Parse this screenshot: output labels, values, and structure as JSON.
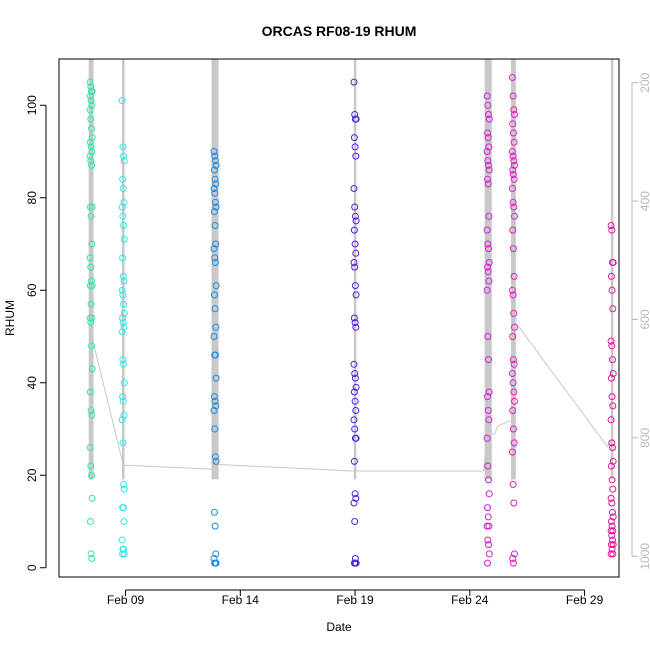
{
  "chart_data": {
    "type": "scatter",
    "title": "ORCAS RF08-19 RHUM",
    "xlabel": "Date",
    "ylabel": "RHUM",
    "x_ticks": [
      "Feb 09",
      "Feb 14",
      "Feb 19",
      "Feb 24",
      "Feb 29"
    ],
    "x_tick_days": [
      9,
      14,
      19,
      24,
      29
    ],
    "xlim_days": [
      6.1,
      30.5
    ],
    "ylim": [
      -2,
      110
    ],
    "y_ticks": [
      0,
      20,
      40,
      60,
      80,
      100
    ],
    "y2_ticks": [
      200,
      400,
      600,
      800,
      1000
    ],
    "y2lim": [
      1035,
      160
    ],
    "grid": false,
    "legend": "none",
    "colors": {
      "altitude_line": "#c8c8c8",
      "axis": "#000000",
      "right_axis": "#b8b8b8"
    },
    "flights": [
      {
        "day": 7.5,
        "color": "#33e6b0",
        "values": [
          105,
          104,
          103,
          103,
          102,
          101,
          100,
          99,
          97,
          95,
          93,
          92,
          91,
          90,
          89,
          88,
          87,
          78,
          78,
          76,
          70,
          67,
          65,
          62,
          61,
          61,
          57,
          54,
          54,
          53,
          48,
          43,
          38,
          34,
          33,
          26,
          22,
          20,
          15,
          10,
          3,
          2
        ]
      },
      {
        "day": 8.9,
        "color": "#2ee8e8",
        "values": [
          101,
          91,
          89,
          88,
          84,
          82,
          79,
          78,
          76,
          74,
          71,
          67,
          63,
          62,
          60,
          59,
          57,
          55,
          54,
          53,
          52,
          51,
          45,
          44,
          40,
          37,
          36,
          33,
          32,
          27,
          18,
          17,
          13,
          13,
          10,
          6,
          4,
          4,
          3,
          3
        ]
      },
      {
        "day": 12.9,
        "color": "#1a8be3",
        "values": [
          90,
          89,
          88,
          87,
          86,
          84,
          83,
          82,
          81,
          79,
          78,
          77,
          74,
          70,
          69,
          67,
          66,
          61,
          59,
          56,
          52,
          50,
          46,
          46,
          41,
          37,
          36,
          35,
          34,
          30,
          24,
          23,
          12,
          9,
          3,
          2,
          1,
          1,
          1
        ]
      },
      {
        "day": 19.0,
        "color": "#4f1ee6",
        "values": [
          105,
          98,
          97,
          97,
          93,
          91,
          89,
          82,
          78,
          76,
          75,
          73,
          70,
          68,
          66,
          65,
          61,
          59,
          54,
          53,
          52,
          44,
          42,
          41,
          39,
          38,
          36,
          34,
          32,
          30,
          28,
          28,
          23,
          16,
          15,
          14,
          10,
          2,
          1,
          1,
          1
        ]
      },
      {
        "day": 24.8,
        "color": "#d21fd6",
        "values": [
          102,
          100,
          98,
          97,
          94,
          93,
          91,
          90,
          88,
          87,
          86,
          84,
          83,
          76,
          73,
          70,
          69,
          66,
          65,
          64,
          62,
          60,
          50,
          45,
          38,
          37,
          34,
          32,
          28,
          22,
          19,
          16,
          13,
          11,
          9,
          9,
          6,
          5,
          3,
          1
        ]
      },
      {
        "day": 25.9,
        "color": "#e61cc4",
        "values": [
          106,
          102,
          99,
          98,
          96,
          94,
          92,
          90,
          89,
          88,
          87,
          86,
          85,
          84,
          82,
          79,
          78,
          76,
          73,
          69,
          63,
          60,
          59,
          55,
          52,
          50,
          45,
          44,
          42,
          40,
          38,
          36,
          34,
          30,
          27,
          25,
          18,
          14,
          3,
          2,
          1
        ]
      },
      {
        "day": 30.2,
        "color": "#e6169b",
        "values": [
          74,
          73,
          66,
          66,
          63,
          60,
          56,
          49,
          48,
          45,
          42,
          41,
          37,
          35,
          32,
          27,
          26,
          23,
          22,
          19,
          17,
          15,
          14,
          12,
          11,
          10,
          9,
          8,
          8,
          7,
          6,
          5,
          5,
          4,
          3,
          3
        ]
      }
    ],
    "altitude_track": [
      {
        "day": 7.4,
        "y2": 820
      },
      {
        "day": 7.45,
        "y2": 800
      },
      {
        "day": 7.5,
        "y2": 700
      },
      {
        "day": 7.55,
        "y2": 610
      },
      {
        "day": 7.6,
        "y2": 640
      },
      {
        "day": 8.9,
        "y2": 846
      },
      {
        "day": 12.8,
        "y2": 853
      },
      {
        "day": 13.0,
        "y2": 845
      },
      {
        "day": 18.9,
        "y2": 856
      },
      {
        "day": 24.6,
        "y2": 856
      },
      {
        "day": 24.75,
        "y2": 795
      },
      {
        "day": 25.1,
        "y2": 793
      },
      {
        "day": 25.2,
        "y2": 780
      },
      {
        "day": 25.85,
        "y2": 770
      },
      {
        "day": 25.9,
        "y2": 600
      },
      {
        "day": 30.0,
        "y2": 815
      },
      {
        "day": 30.2,
        "y2": 800
      }
    ],
    "altitude_profile_days": [
      7.45,
      7.5,
      7.55,
      8.9,
      12.8,
      12.9,
      13.0,
      19.0,
      24.7,
      24.8,
      24.9,
      25.85,
      25.9,
      25.95,
      30.2
    ]
  }
}
